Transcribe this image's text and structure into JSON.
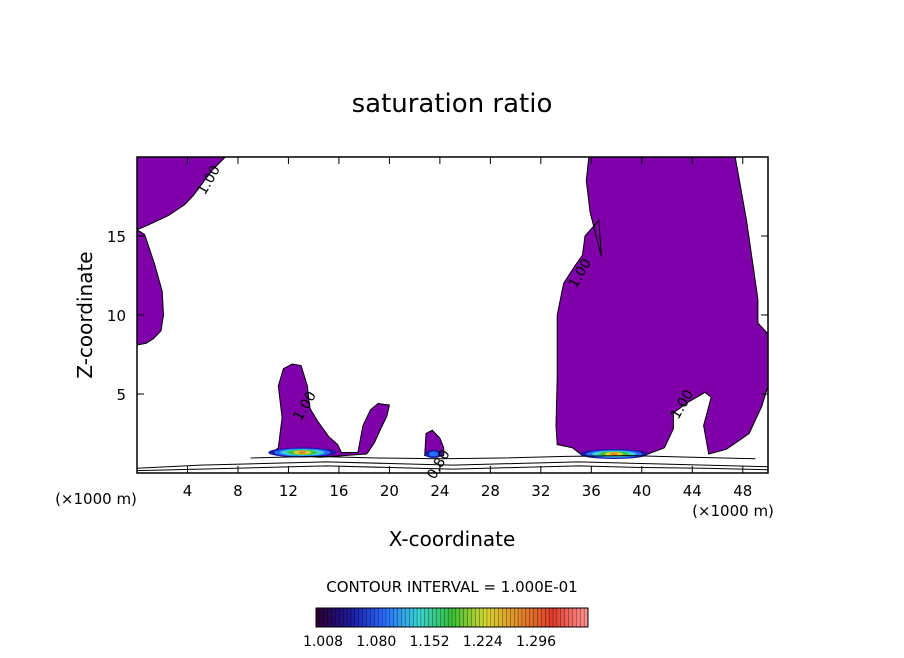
{
  "chart_data": {
    "type": "contour",
    "title": "saturation ratio",
    "xlabel": "X-coordinate",
    "ylabel": "Z-coordinate",
    "x_unit_left": "(×1000 m)",
    "x_unit_right": "(×1000 m)",
    "xlim": [
      0,
      50
    ],
    "ylim": [
      0,
      20
    ],
    "x_ticks": [
      4,
      8,
      12,
      16,
      20,
      24,
      28,
      32,
      36,
      40,
      44,
      48
    ],
    "y_ticks": [
      5,
      10,
      15
    ],
    "contour_interval_text": "CONTOUR INTERVAL = 1.000E-01",
    "contour_labels": [
      {
        "text": "1.00",
        "x": 6,
        "y": 18.4
      },
      {
        "text": "1.00",
        "x": 35.4,
        "y": 12.5
      },
      {
        "text": "1.00",
        "x": 13.6,
        "y": 4.1
      },
      {
        "text": "1.00",
        "x": 43.5,
        "y": 4.2
      },
      {
        "text": "0.80",
        "x": 24.2,
        "y": 0.4
      }
    ],
    "supersaturated_regions": [
      {
        "points": [
          [
            0,
            20
          ],
          [
            7,
            20
          ],
          [
            6,
            19.2
          ],
          [
            4.5,
            17.6
          ],
          [
            3.8,
            17
          ],
          [
            2.5,
            16.3
          ],
          [
            0.9,
            15.7
          ],
          [
            0,
            15.4
          ]
        ]
      },
      {
        "points": [
          [
            0,
            15.4
          ],
          [
            0.6,
            15.1
          ],
          [
            1.4,
            13.2
          ],
          [
            2,
            11.5
          ],
          [
            2.1,
            10
          ],
          [
            1.9,
            9
          ],
          [
            1.3,
            8.5
          ],
          [
            0.7,
            8.2
          ],
          [
            0,
            8.1
          ]
        ]
      },
      {
        "points": [
          [
            35.8,
            20
          ],
          [
            47.4,
            20
          ],
          [
            48.3,
            16
          ],
          [
            49.2,
            11
          ],
          [
            49.2,
            9.5
          ],
          [
            50,
            8.8
          ],
          [
            50,
            5.5
          ],
          [
            49.5,
            4.2
          ],
          [
            48.5,
            2.5
          ],
          [
            46.7,
            1.5
          ],
          [
            45.3,
            1.2
          ],
          [
            44.9,
            3
          ],
          [
            45.5,
            4.8
          ],
          [
            45,
            5.1
          ],
          [
            43.7,
            4.5
          ],
          [
            42.5,
            3.8
          ],
          [
            42.5,
            2.8
          ],
          [
            41.8,
            1.6
          ],
          [
            40.5,
            1.2
          ],
          [
            38.3,
            1
          ],
          [
            35.3,
            1.1
          ],
          [
            34.5,
            1.6
          ],
          [
            33.3,
            1.8
          ],
          [
            33.2,
            3
          ],
          [
            33.3,
            6
          ],
          [
            33.3,
            10
          ],
          [
            33.8,
            12
          ],
          [
            34.6,
            13
          ],
          [
            35.3,
            13.8
          ],
          [
            35.5,
            15
          ],
          [
            36.6,
            16
          ],
          [
            36.8,
            13.7
          ],
          [
            36.7,
            14
          ],
          [
            35.9,
            16.5
          ],
          [
            35.6,
            18.5
          ]
        ]
      },
      {
        "points": [
          [
            10.6,
            1.2
          ],
          [
            11.2,
            1.6
          ],
          [
            11.5,
            3.5
          ],
          [
            11.2,
            5.5
          ],
          [
            11.6,
            6.6
          ],
          [
            12.3,
            6.9
          ],
          [
            13,
            6.8
          ],
          [
            13.5,
            5.5
          ],
          [
            13.7,
            4.1
          ],
          [
            14.3,
            3.3
          ],
          [
            15.2,
            2.3
          ],
          [
            15.9,
            1.8
          ],
          [
            16.2,
            1.3
          ],
          [
            17.5,
            1.3
          ],
          [
            17.9,
            3
          ],
          [
            18.5,
            4
          ],
          [
            19.1,
            4.4
          ],
          [
            20,
            4.3
          ],
          [
            19.8,
            3.6
          ],
          [
            19.2,
            2.6
          ],
          [
            18.8,
            1.9
          ],
          [
            18.2,
            1.2
          ],
          [
            14.5,
            1
          ]
        ]
      },
      {
        "points": [
          [
            22.8,
            1.1
          ],
          [
            22.9,
            2.5
          ],
          [
            23.4,
            2.7
          ],
          [
            24,
            2.2
          ],
          [
            24.3,
            1.6
          ],
          [
            24.3,
            1.1
          ]
        ]
      }
    ],
    "peak_regions": [
      {
        "x": 13.1,
        "y": 1.3,
        "level": 1.296
      },
      {
        "x": 37.8,
        "y": 1.2,
        "level": 1.296
      },
      {
        "x": 23.5,
        "y": 1.2,
        "level": 1.08
      }
    ],
    "contour_lines_near_surface": [
      [
        [
          0,
          0.3
        ],
        [
          5,
          0.5
        ],
        [
          10,
          0.6
        ],
        [
          15,
          0.7
        ],
        [
          20,
          0.6
        ],
        [
          25,
          0.5
        ],
        [
          30,
          0.6
        ],
        [
          35,
          0.7
        ],
        [
          40,
          0.6
        ],
        [
          45,
          0.5
        ],
        [
          50,
          0.4
        ]
      ],
      [
        [
          0,
          0.15
        ],
        [
          5,
          0.25
        ],
        [
          10,
          0.35
        ],
        [
          15,
          0.45
        ],
        [
          20,
          0.35
        ],
        [
          25,
          0.25
        ],
        [
          30,
          0.35
        ],
        [
          35,
          0.45
        ],
        [
          40,
          0.35
        ],
        [
          45,
          0.3
        ],
        [
          50,
          0.2
        ]
      ],
      [
        [
          9,
          0.95
        ],
        [
          14,
          1.05
        ],
        [
          19,
          0.95
        ],
        [
          24,
          0.9
        ],
        [
          29,
          0.95
        ],
        [
          34,
          1.05
        ],
        [
          39,
          1.1
        ],
        [
          44,
          1
        ],
        [
          49,
          0.9
        ]
      ]
    ],
    "colorbar": {
      "tick_labels": [
        "1.008",
        "1.080",
        "1.152",
        "1.224",
        "1.296"
      ],
      "colors": [
        "#2b0033",
        "#1b1aa0",
        "#2a6cff",
        "#39d3d3",
        "#38c038",
        "#d6d632",
        "#e08a2a",
        "#e03a2a",
        "#ff9090"
      ]
    },
    "fill_color": "#7f00a8"
  }
}
